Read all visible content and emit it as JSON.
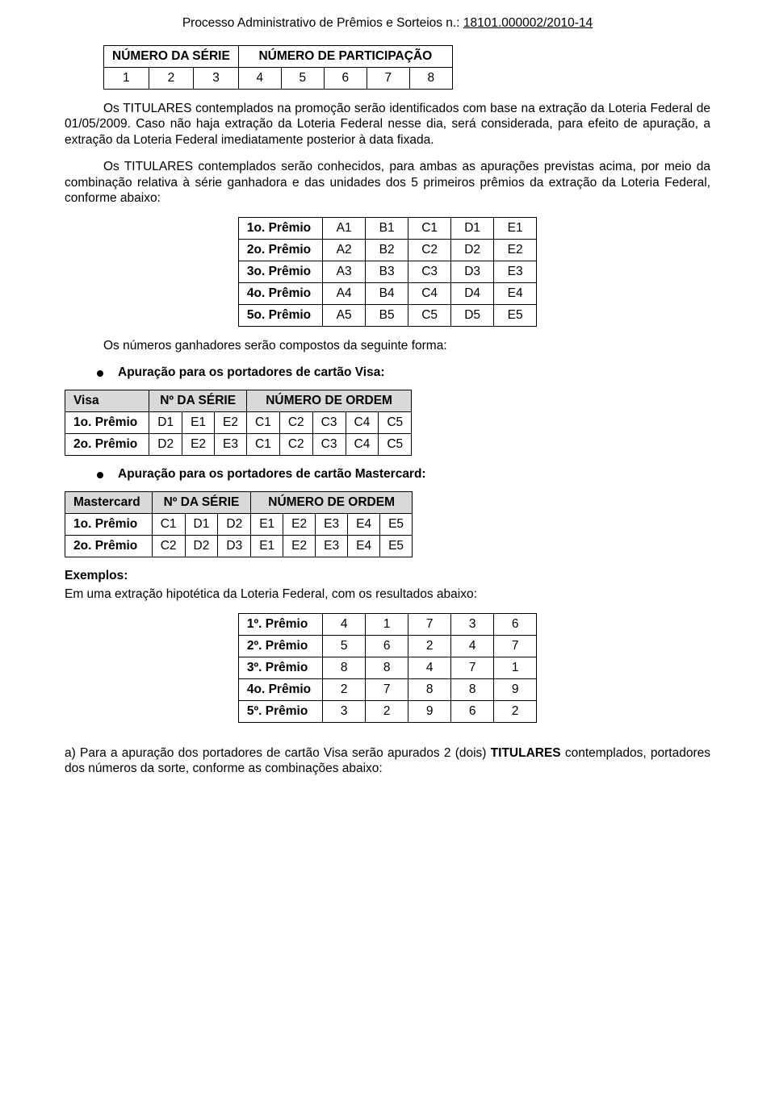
{
  "header": {
    "prefix": "Processo Administrativo de Prêmios e Sorteios  n.: ",
    "number": "18101.000002/2010-14"
  },
  "tables": {
    "serie_participacao": {
      "header_left": "NÚMERO DA SÉRIE",
      "header_right": "NÚMERO DE PARTICIPAÇÃO",
      "cells": [
        "1",
        "2",
        "3",
        "4",
        "5",
        "6",
        "7",
        "8"
      ]
    },
    "premios_codes": {
      "rows": [
        {
          "label": "1o. Prêmio",
          "cells": [
            "A1",
            "B1",
            "C1",
            "D1",
            "E1"
          ]
        },
        {
          "label": "2o. Prêmio",
          "cells": [
            "A2",
            "B2",
            "C2",
            "D2",
            "E2"
          ]
        },
        {
          "label": "3o. Prêmio",
          "cells": [
            "A3",
            "B3",
            "C3",
            "D3",
            "E3"
          ]
        },
        {
          "label": "4o. Prêmio",
          "cells": [
            "A4",
            "B4",
            "C4",
            "D4",
            "E4"
          ]
        },
        {
          "label": "5o. Prêmio",
          "cells": [
            "A5",
            "B5",
            "C5",
            "D5",
            "E5"
          ]
        }
      ]
    },
    "visa": {
      "h0": "Visa",
      "h1": "Nº DA SÉRIE",
      "h2": "NÚMERO DE ORDEM",
      "rows": [
        {
          "label": "1o. Prêmio",
          "cells": [
            "D1",
            "E1",
            "E2",
            "C1",
            "C2",
            "C3",
            "C4",
            "C5"
          ]
        },
        {
          "label": "2o. Prêmio",
          "cells": [
            "D2",
            "E2",
            "E3",
            "C1",
            "C2",
            "C3",
            "C4",
            "C5"
          ]
        }
      ]
    },
    "mastercard": {
      "h0": "Mastercard",
      "h1": "Nº DA SÉRIE",
      "h2": "NÚMERO DE ORDEM",
      "rows": [
        {
          "label": "1o. Prêmio",
          "cells": [
            "C1",
            "D1",
            "D2",
            "E1",
            "E2",
            "E3",
            "E4",
            "E5"
          ]
        },
        {
          "label": "2o. Prêmio",
          "cells": [
            "C2",
            "D2",
            "D3",
            "E1",
            "E2",
            "E3",
            "E4",
            "E5"
          ]
        }
      ]
    },
    "extracao": {
      "rows": [
        {
          "label": "1º. Prêmio",
          "cells": [
            "4",
            "1",
            "7",
            "3",
            "6"
          ]
        },
        {
          "label": "2º. Prêmio",
          "cells": [
            "5",
            "6",
            "2",
            "4",
            "7"
          ]
        },
        {
          "label": "3º. Prêmio",
          "cells": [
            "8",
            "8",
            "4",
            "7",
            "1"
          ]
        },
        {
          "label": "4o. Prêmio",
          "cells": [
            "2",
            "7",
            "8",
            "8",
            "9"
          ]
        },
        {
          "label": "5º. Prêmio",
          "cells": [
            "3",
            "2",
            "9",
            "6",
            "2"
          ]
        }
      ]
    }
  },
  "text": {
    "p1": "Os TITULARES contemplados na promoção serão identificados com base na extração da Loteria Federal de 01/05/2009. Caso não haja extração da Loteria Federal nesse dia, será considerada, para efeito de apuração, a extração da Loteria Federal imediatamente posterior à data fixada.",
    "p2": "Os TITULARES contemplados serão conhecidos, para ambas as apurações previstas acima, por meio da combinação relativa à série ganhadora e das unidades dos 5 primeiros prêmios da extração da Loteria Federal, conforme abaixo:",
    "p3": "Os números ganhadores serão compostos da seguinte forma:",
    "bullet_visa": "Apuração para os portadores de cartão Visa:",
    "bullet_mc": "Apuração para os portadores de cartão Mastercard:",
    "exemplos_label": "Exemplos:",
    "exemplos_line": "Em uma extração hipotética da Loteria Federal, com os resultados abaixo:",
    "p_final_a": "a) Para a apuração dos portadores de cartão Visa serão apurados 2 (dois) ",
    "p_final_b": "TITULARES",
    "p_final_c": " contemplados, portadores dos números da sorte, conforme as combinações abaixo:"
  }
}
